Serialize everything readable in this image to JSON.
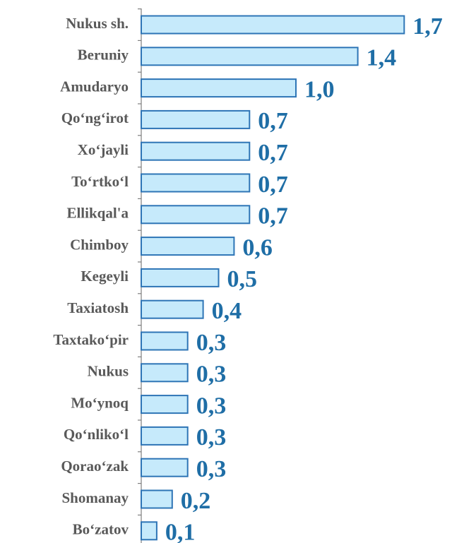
{
  "chart_data": {
    "type": "bar",
    "orientation": "horizontal",
    "categories": [
      "Nukus sh.",
      "Beruniy",
      "Amudaryo",
      "Qo‘ng‘irot",
      "Xo‘jayli",
      "To‘rtko‘l",
      "Ellikqal'a",
      "Chimboy",
      "Kegeyli",
      "Taxiatosh",
      "Taxtako‘pir",
      "Nukus",
      "Mo‘ynoq",
      "Qo‘nliko‘l",
      "Qorao‘zak",
      "Shomanay",
      "Bo‘zatov"
    ],
    "values": [
      1.7,
      1.4,
      1.0,
      0.7,
      0.7,
      0.7,
      0.7,
      0.6,
      0.5,
      0.4,
      0.3,
      0.3,
      0.3,
      0.3,
      0.3,
      0.2,
      0.1
    ],
    "value_labels": [
      "1,7",
      "1,4",
      "1,0",
      "0,7",
      "0,7",
      "0,7",
      "0,7",
      "0,6",
      "0,5",
      "0,4",
      "0,3",
      "0,3",
      "0,3",
      "0,3",
      "0,3",
      "0,2",
      "0,1"
    ],
    "color": "#c6eafb",
    "edge_color": "#2e75b6",
    "label_color": "#1f6ea6"
  }
}
